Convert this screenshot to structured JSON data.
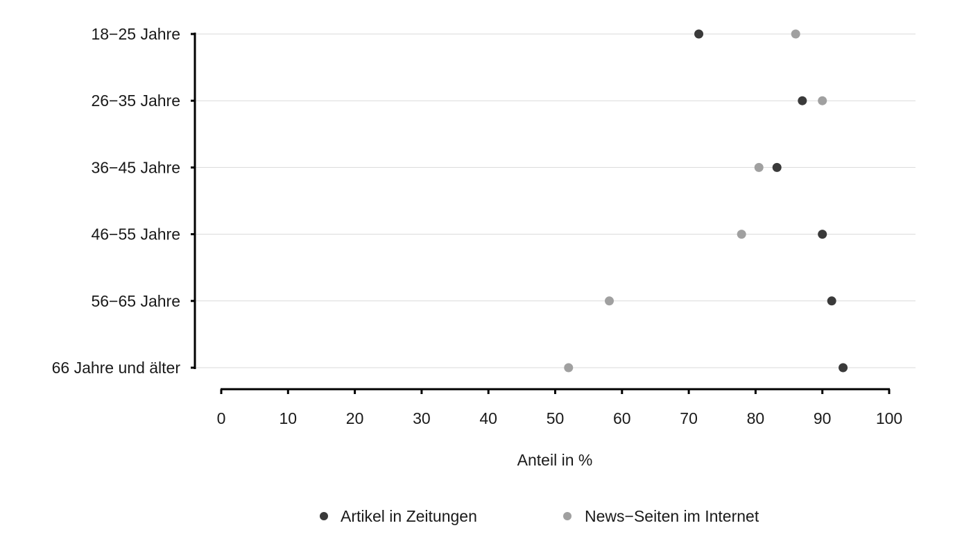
{
  "chart_data": {
    "type": "scatter",
    "orientation": "horizontal-dot",
    "categories": [
      "18−25 Jahre",
      "26−35 Jahre",
      "36−45 Jahre",
      "46−55 Jahre",
      "56−65 Jahre",
      "66 Jahre und älter"
    ],
    "series": [
      {
        "name": "Artikel in Zeitungen",
        "color": "#3a3a3a",
        "values": [
          71.5,
          87,
          83.2,
          90,
          91.4,
          93.1
        ]
      },
      {
        "name": "News−Seiten im Internet",
        "color": "#a0a0a0",
        "values": [
          86,
          90,
          80.5,
          77.9,
          58.1,
          52
        ]
      }
    ],
    "x_ticks": [
      "0",
      "10",
      "20",
      "30",
      "40",
      "50",
      "60",
      "70",
      "80",
      "90",
      "100"
    ],
    "xlim": [
      0,
      100
    ],
    "xlabel": "Anteil in %",
    "ylabel": "",
    "title": "",
    "grid": true,
    "legend_position": "bottom"
  }
}
